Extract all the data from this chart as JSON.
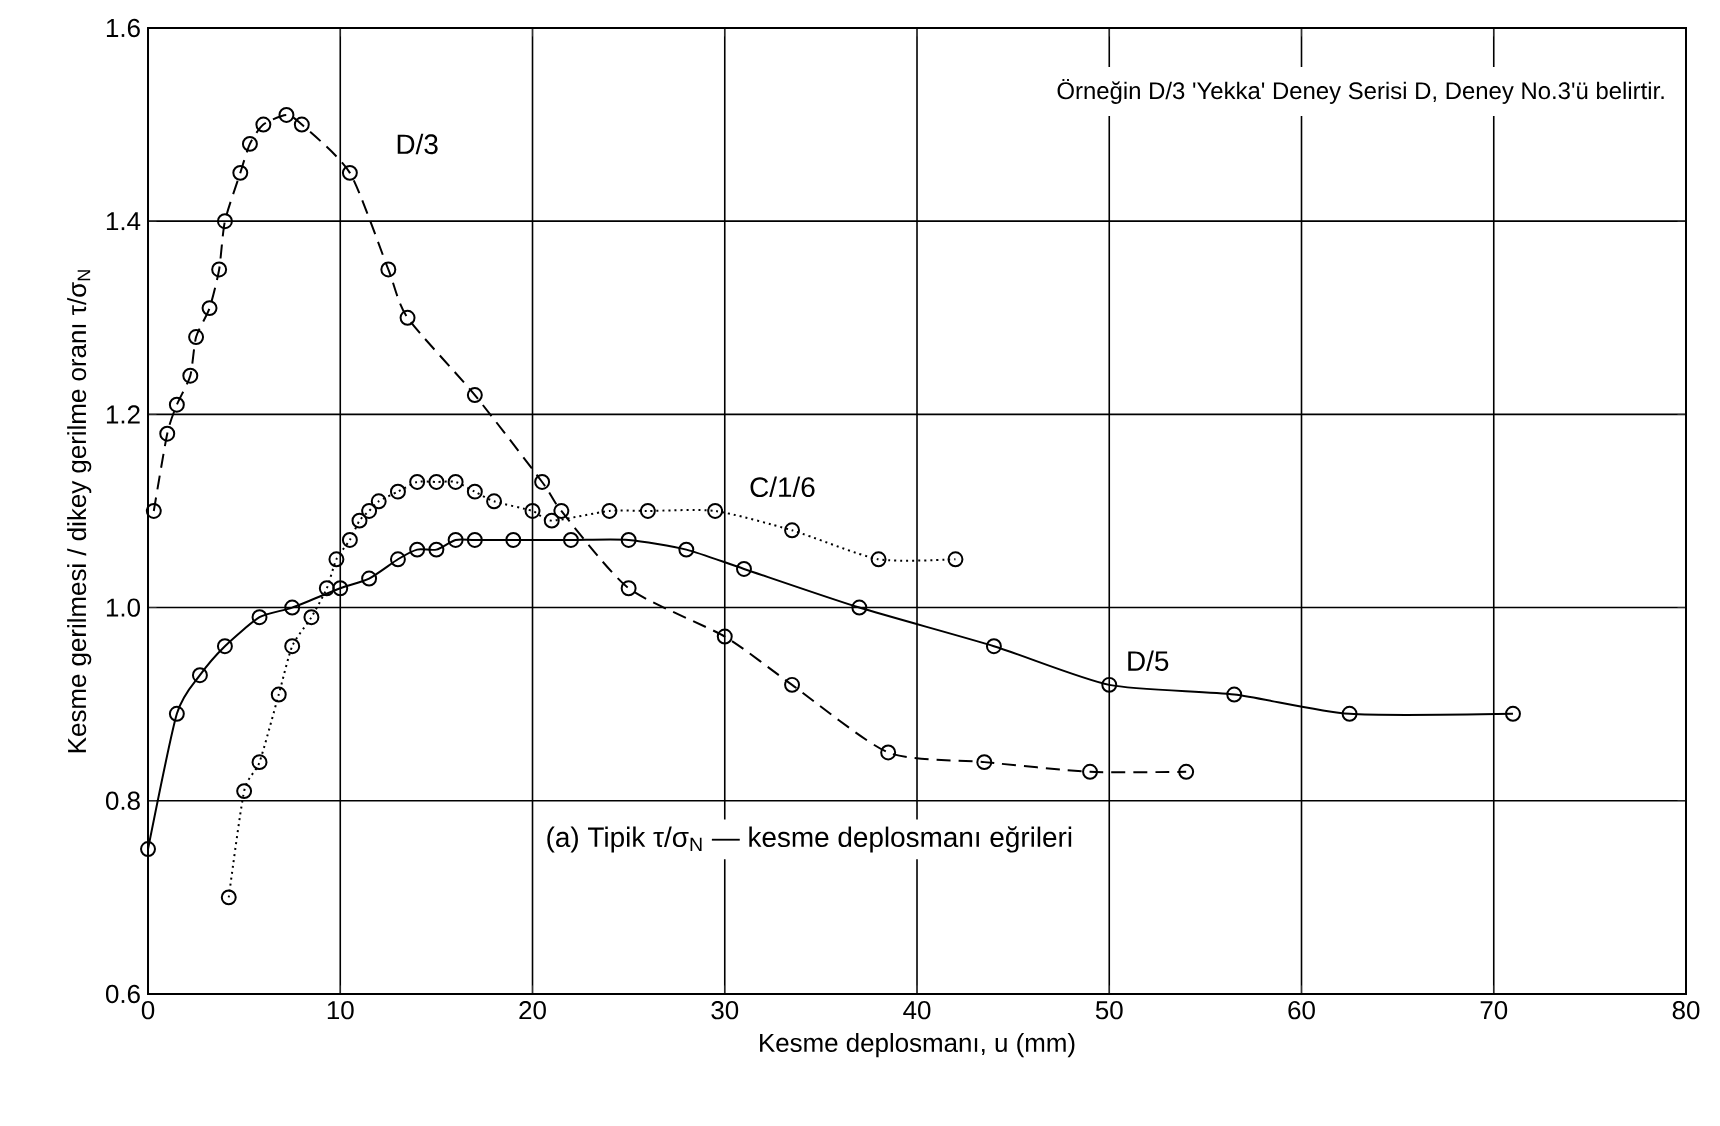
{
  "chart_data": {
    "type": "line",
    "title": "(a) Tipik τ/σ$_{N}$ — kesme deplosmanı eğrileri",
    "xlabel": "Kesme deplosmanı, u (mm)",
    "ylabel": "Kesme gerilmesi / dikey gerilme oranı  τ/σ$_{N}$",
    "annotations": [
      "Örneğin D/3 'Yekka' Deney Serisi D, Deney No.3'ü belirtir."
    ],
    "xlim": [
      0,
      80
    ],
    "ylim": [
      0.6,
      1.6
    ],
    "xticks": [
      0,
      10,
      20,
      30,
      40,
      50,
      60,
      70,
      80
    ],
    "yticks": [
      0.6,
      0.8,
      {
        "value": 1,
        "label": "1.0"
      },
      1.2,
      1.4,
      1.6
    ],
    "grid": true,
    "marker": "circle",
    "series": [
      {
        "name": "D/3",
        "color": "#000000",
        "line_style": "dashed",
        "x": [
          0.3,
          1.0,
          1.5,
          2.2,
          2.5,
          3.2,
          3.7,
          4.0,
          4.8,
          5.3,
          6.0,
          7.2,
          8.0,
          10.5,
          12.5,
          13.5,
          17.0,
          20.5,
          21.5,
          25.0,
          30.0,
          33.5,
          38.5,
          43.5,
          49.0,
          54.0
        ],
        "values": [
          1.1,
          1.18,
          1.21,
          1.24,
          1.28,
          1.31,
          1.35,
          1.4,
          1.45,
          1.48,
          1.5,
          1.51,
          1.5,
          1.45,
          1.35,
          1.3,
          1.22,
          1.13,
          1.1,
          1.02,
          0.97,
          0.92,
          0.85,
          0.84,
          0.83,
          0.83
        ]
      },
      {
        "name": "C/1/6",
        "color": "#000000",
        "line_style": "dotted",
        "x": [
          4.2,
          5.0,
          5.8,
          6.8,
          7.5,
          8.5,
          9.3,
          9.8,
          10.5,
          11.0,
          11.5,
          12.0,
          13.0,
          14.0,
          15.0,
          16.0,
          17.0,
          18.0,
          20.0,
          21.0,
          24.0,
          26.0,
          29.5,
          33.5,
          38.0,
          42.0
        ],
        "values": [
          0.7,
          0.81,
          0.84,
          0.91,
          0.96,
          0.99,
          1.02,
          1.05,
          1.07,
          1.09,
          1.1,
          1.11,
          1.12,
          1.13,
          1.13,
          1.13,
          1.12,
          1.11,
          1.1,
          1.09,
          1.1,
          1.1,
          1.1,
          1.08,
          1.05,
          1.05
        ]
      },
      {
        "name": "D/5",
        "color": "#000000",
        "line_style": "solid",
        "x": [
          0.0,
          1.5,
          2.7,
          4.0,
          5.8,
          7.5,
          10.0,
          11.5,
          13.0,
          14.0,
          15.0,
          16.0,
          17.0,
          19.0,
          22.0,
          25.0,
          28.0,
          31.0,
          37.0,
          44.0,
          50.0,
          56.5,
          62.5,
          71.0
        ],
        "values": [
          0.75,
          0.89,
          0.93,
          0.96,
          0.99,
          1.0,
          1.02,
          1.03,
          1.05,
          1.06,
          1.06,
          1.07,
          1.07,
          1.07,
          1.07,
          1.07,
          1.06,
          1.04,
          1.0,
          0.96,
          0.92,
          0.91,
          0.89,
          0.89
        ]
      }
    ]
  }
}
